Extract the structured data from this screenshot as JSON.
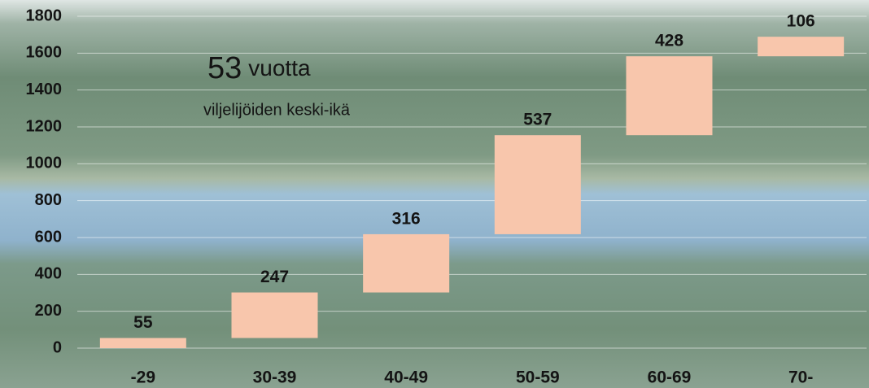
{
  "chart_data": {
    "type": "waterfall",
    "categories": [
      "-29",
      "30-39",
      "40-49",
      "50-59",
      "60-69",
      "70-"
    ],
    "values": [
      55,
      247,
      316,
      537,
      428,
      106
    ],
    "color": "#f8c6ac",
    "ylim": [
      0,
      1800
    ],
    "yticks": [
      0,
      200,
      400,
      600,
      800,
      1000,
      1200,
      1400,
      1600,
      1800
    ],
    "grid": true,
    "annotation": {
      "value": "53",
      "unit": "vuotta",
      "caption": "viljelijöiden keski-ikä"
    }
  }
}
